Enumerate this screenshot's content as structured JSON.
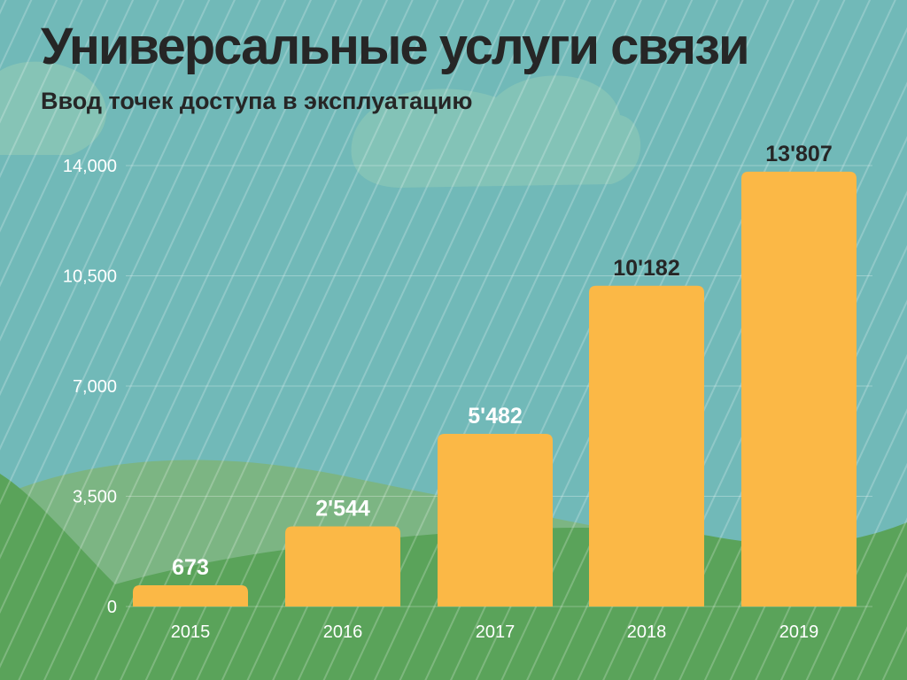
{
  "chart_data": {
    "type": "bar",
    "title": "Универсальные услуги связи",
    "subtitle": "Ввод точек доступа в эксплуатацию",
    "categories": [
      "2015",
      "2016",
      "2017",
      "2018",
      "2019"
    ],
    "values": [
      673,
      2544,
      5482,
      10182,
      13807
    ],
    "value_labels": [
      "673",
      "2'544",
      "5'482",
      "10'182",
      "13'807"
    ],
    "yticks": [
      "0",
      "3,500",
      "7,000",
      "10,500",
      "14,000"
    ],
    "ylim": [
      0,
      14000
    ],
    "xlabel": "",
    "ylabel": "",
    "grid": true,
    "legend": "none"
  },
  "colors": {
    "background": "#71b9b8",
    "bar": "#fbb846",
    "hill_dark": "#5aa35a",
    "hill_light": "#7cb583",
    "cloud": "#86c4b6",
    "title": "#262626",
    "label_dark": "#262626",
    "label_light": "#ffffff",
    "tick": "#ffffff"
  }
}
